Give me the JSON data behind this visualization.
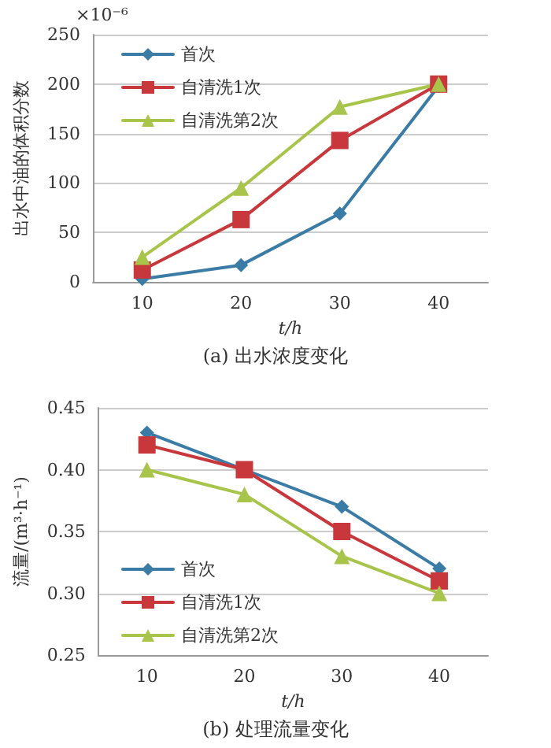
{
  "chart_data": [
    {
      "type": "line",
      "title": "(a) 出水浓度变化",
      "xlabel": "t/h",
      "ylabel": "出水中油的体积分数",
      "annotations": [
        "×10⁻⁶"
      ],
      "categories": [
        "10",
        "20",
        "30",
        "40"
      ],
      "series": [
        {
          "name": "首次",
          "color": "#3a7ca5",
          "marker": "diamond",
          "values": [
            3,
            17,
            69,
            198
          ]
        },
        {
          "name": "自清洗1次",
          "color": "#c8373c",
          "marker": "square",
          "values": [
            12,
            63,
            143,
            200
          ]
        },
        {
          "name": "自清洗第2次",
          "color": "#a8c44a",
          "marker": "triangle",
          "values": [
            25,
            95,
            177,
            200
          ]
        }
      ],
      "ylim": [
        0,
        250
      ],
      "yticks": [
        0,
        50,
        100,
        150,
        200,
        250
      ],
      "grid": "y",
      "legend": "top left",
      "line_style": "solid"
    },
    {
      "type": "line",
      "title": "(b) 处理流量变化",
      "xlabel": "t/h",
      "ylabel": "流量/(m³·h⁻¹)",
      "categories": [
        "10",
        "20",
        "30",
        "40"
      ],
      "series": [
        {
          "name": "首次",
          "color": "#3a7ca5",
          "marker": "diamond",
          "values": [
            0.43,
            0.4,
            0.37,
            0.32
          ]
        },
        {
          "name": "自清洗1次",
          "color": "#c8373c",
          "marker": "square",
          "values": [
            0.42,
            0.4,
            0.35,
            0.31
          ]
        },
        {
          "name": "自清洗第2次",
          "color": "#a8c44a",
          "marker": "triangle",
          "values": [
            0.4,
            0.38,
            0.33,
            0.3
          ]
        }
      ],
      "ylim": [
        0.25,
        0.45
      ],
      "yticks": [
        0.25,
        {
          "value": 0.3,
          "label": "0.30"
        },
        0.35,
        {
          "value": 0.4,
          "label": "0.40"
        },
        0.45
      ],
      "grid": "y",
      "legend": "bottom left",
      "line_style": "solid"
    }
  ]
}
